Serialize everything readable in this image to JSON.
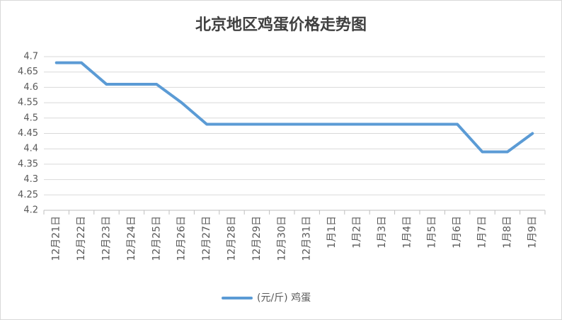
{
  "chart_data": {
    "type": "line",
    "title": "北京地区鸡蛋价格走势图",
    "categories": [
      "12月21日",
      "12月22日",
      "12月23日",
      "12月24日",
      "12月25日",
      "12月26日",
      "12月27日",
      "12月28日",
      "12月29日",
      "12月30日",
      "12月31日",
      "1月1日",
      "1月2日",
      "1月3日",
      "1月4日",
      "1月5日",
      "1月6日",
      "1月7日",
      "1月8日",
      "1月9日"
    ],
    "series": [
      {
        "name": "(元/斤) 鸡蛋",
        "color": "#5b9bd5",
        "values": [
          4.68,
          4.68,
          4.61,
          4.61,
          4.61,
          4.55,
          4.48,
          4.48,
          4.48,
          4.48,
          4.48,
          4.48,
          4.48,
          4.48,
          4.48,
          4.48,
          4.48,
          4.39,
          4.39,
          4.45
        ]
      }
    ],
    "ylim": [
      4.2,
      4.7
    ],
    "yticks": [
      4.2,
      4.25,
      4.3,
      4.35,
      4.4,
      4.45,
      4.5,
      4.55,
      4.6,
      4.65,
      4.7
    ],
    "grid": true,
    "legend": "bottom"
  }
}
